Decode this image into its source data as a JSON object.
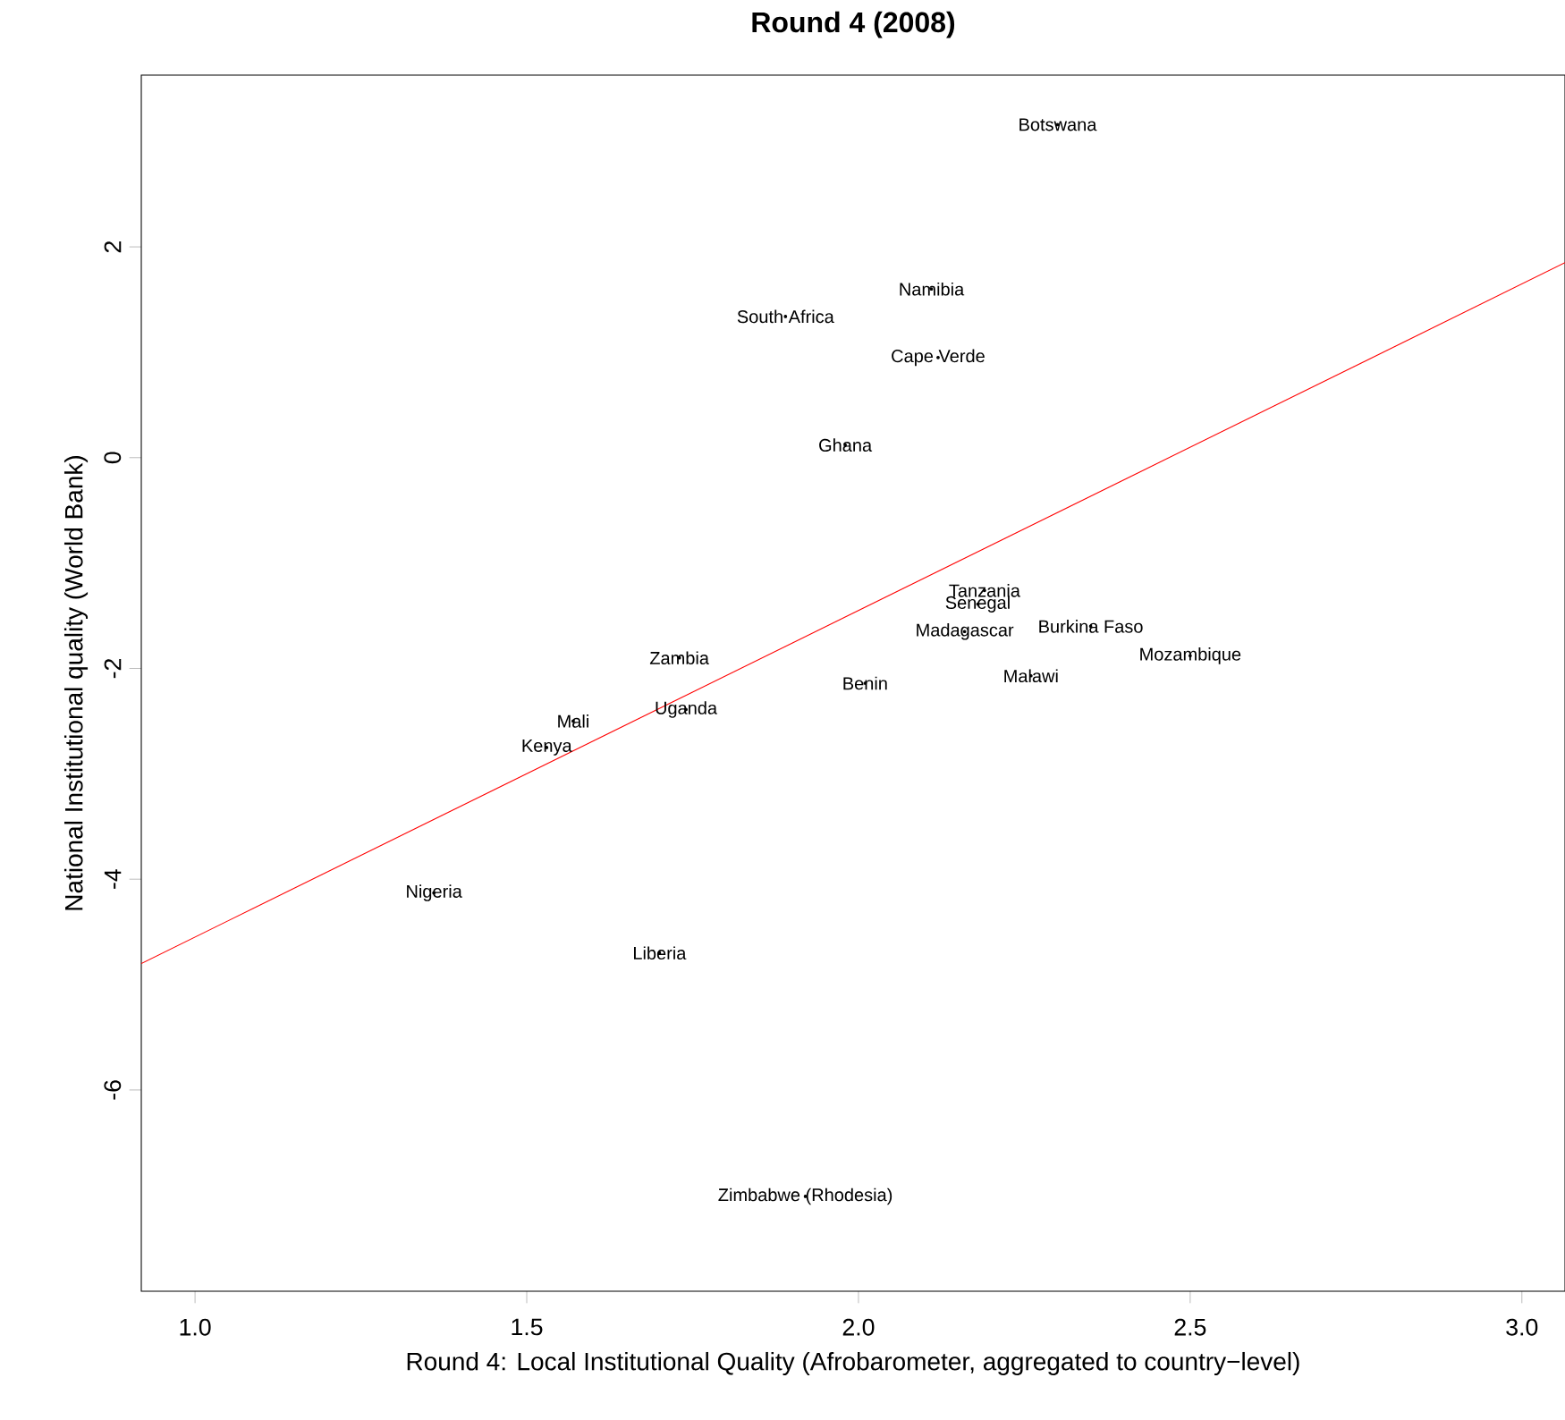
{
  "chart_data": {
    "type": "scatter",
    "title": "Round 4 (2008)",
    "xlabel": "Round 4: Local Institutional Quality (Afrobarometer, aggregated to country−level)",
    "ylabel": "National Institutional quality (World Bank)",
    "xlim": [
      0.919,
      3.065
    ],
    "ylim": [
      -7.91,
      3.63
    ],
    "xticks": [
      {
        "value": 1,
        "label": "1.0"
      },
      {
        "value": 1.5,
        "label": "1.5"
      },
      {
        "value": 2,
        "label": "2.0"
      },
      {
        "value": 2.5,
        "label": "2.5"
      },
      {
        "value": 3,
        "label": "3.0"
      }
    ],
    "yticks": [
      -6,
      -4,
      -2,
      0,
      2
    ],
    "series": [
      {
        "color": "#000000",
        "x": [
          2.3,
          2.11,
          1.89,
          2.12,
          1.98,
          2.19,
          2.18,
          2.35,
          2.16,
          1.73,
          2.5,
          2.26,
          2.01,
          1.74,
          1.57,
          1.53,
          1.36,
          1.7,
          1.92
        ],
        "values": [
          3.16,
          1.6,
          1.34,
          0.95,
          0.12,
          -1.26,
          -1.39,
          -1.6,
          -1.65,
          -1.9,
          -1.88,
          -2.07,
          -2.14,
          -2.39,
          -2.5,
          -2.75,
          -4.13,
          -4.7,
          -7.01
        ],
        "value_labels": [
          "Botswana",
          "Namibia",
          "South Africa",
          "Cape Verde",
          "Ghana",
          "Tanzania",
          "Senegal",
          "Burkina Faso",
          "Madagascar",
          "Zambia",
          "Mozambique",
          "Malawi",
          "Benin",
          "Uganda",
          "Mali",
          "Kenya",
          "Nigeria",
          "Liberia",
          "Zimbabwe (Rhodesia)"
        ]
      },
      {
        "type": "line",
        "color": "#ff0000",
        "x": [
          0.919,
          3.065
        ],
        "values": [
          -4.8,
          1.85
        ]
      }
    ]
  }
}
